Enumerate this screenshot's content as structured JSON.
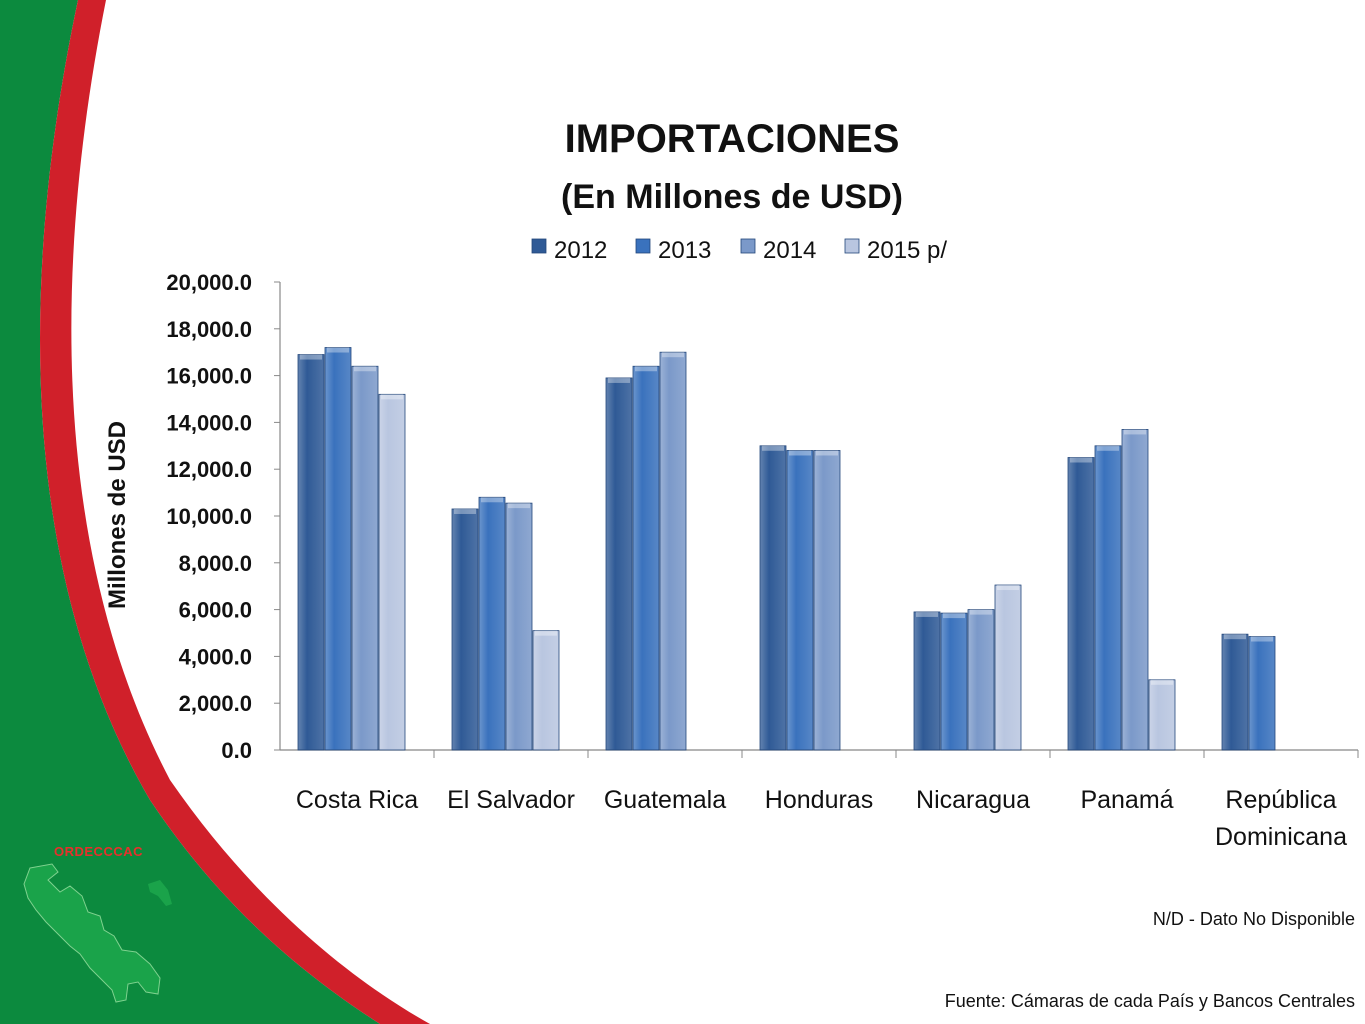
{
  "colors": {
    "green": "#0c8a3e",
    "red": "#d0202a",
    "s2012": "#2f5a96",
    "s2013": "#3a72bd",
    "s2014": "#7b99c9",
    "s2015": "#b9c6e0"
  },
  "logo": {
    "text": "ORDECCCAC"
  },
  "footnote": "N/D  - Dato No Disponible",
  "source": "Fuente: Cámaras de cada País y Bancos Centrales",
  "chart_data": {
    "type": "bar",
    "title": "IMPORTACIONES",
    "subtitle": "(En Millones de USD)",
    "ylabel": "Millones de USD",
    "xlabel": "",
    "ylim": [
      0,
      20000
    ],
    "yticks": [
      "0.0",
      "2,000.0",
      "4,000.0",
      "6,000.0",
      "8,000.0",
      "10,000.0",
      "12,000.0",
      "14,000.0",
      "16,000.0",
      "18,000.0",
      "20,000.0"
    ],
    "ytick_values": [
      0,
      2000,
      4000,
      6000,
      8000,
      10000,
      12000,
      14000,
      16000,
      18000,
      20000
    ],
    "legend_position": "top",
    "grid": false,
    "categories": [
      "Costa Rica",
      "El Salvador",
      "Guatemala",
      "Honduras",
      "Nicaragua",
      "Panamá",
      "República Dominicana"
    ],
    "category_lines": [
      [
        "Costa Rica"
      ],
      [
        "El Salvador"
      ],
      [
        "Guatemala"
      ],
      [
        "Honduras"
      ],
      [
        "Nicaragua"
      ],
      [
        "Panamá"
      ],
      [
        "República",
        "Dominicana"
      ]
    ],
    "series": [
      {
        "name": "2012",
        "values": [
          16900,
          10300,
          15900,
          13000,
          5900,
          12500,
          4950
        ]
      },
      {
        "name": "2013",
        "values": [
          17200,
          10800,
          16400,
          12800,
          5850,
          13000,
          4850
        ]
      },
      {
        "name": "2014",
        "values": [
          16400,
          10550,
          17000,
          12800,
          6000,
          13700,
          null
        ]
      },
      {
        "name": "2015 p/",
        "values": [
          15200,
          5100,
          null,
          null,
          7050,
          3000,
          null
        ]
      }
    ]
  }
}
